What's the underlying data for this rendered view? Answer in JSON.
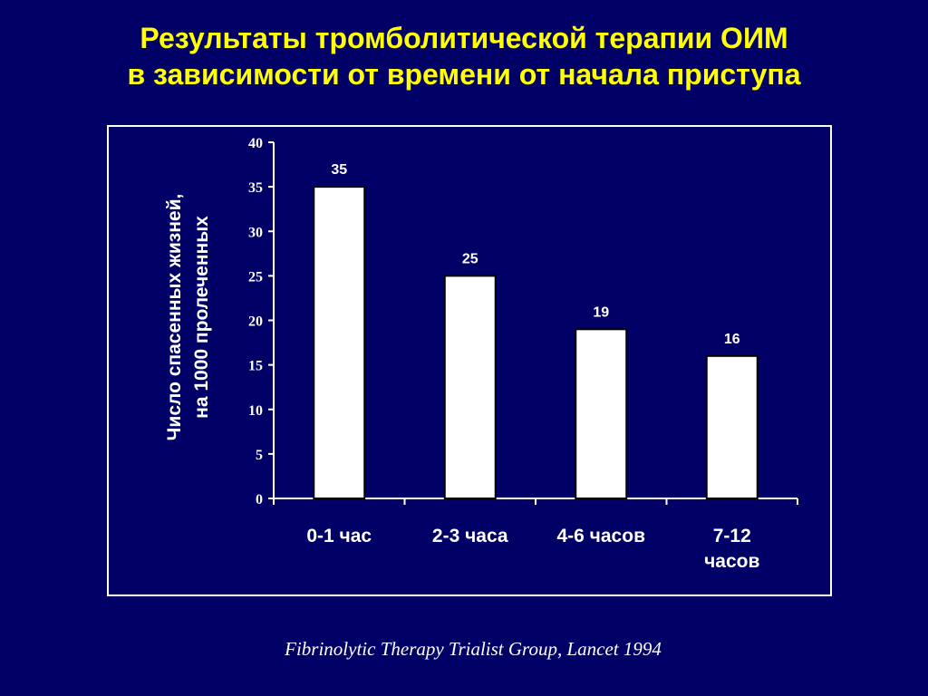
{
  "slide": {
    "title_line1": "Результаты тромболитической терапии ОИМ",
    "title_line2": "в зависимости от времени от начала приступа",
    "citation": "Fibrinolytic Therapy Trialist Group, Lancet 1994"
  },
  "colors": {
    "background": "#000066",
    "title": "#ffff00",
    "foreground": "#ffffff",
    "bar_fill": "#ffffff",
    "bar_stroke": "#000000"
  },
  "chart_data": {
    "type": "bar",
    "title": "",
    "categories": [
      "0-1 час",
      "2-3 часа",
      "4-6 часов",
      "7-12 часов"
    ],
    "category_lines": [
      [
        "0-1 час"
      ],
      [
        "2-3 часа"
      ],
      [
        "4-6 часов"
      ],
      [
        "7-12",
        "часов"
      ]
    ],
    "values": [
      35,
      25,
      19,
      16
    ],
    "data_labels": [
      "35",
      "25",
      "19",
      "16"
    ],
    "xlabel": "",
    "ylabel": "Число спасенных жизней, на 1000 пролеченных",
    "ylabel_lines": [
      "Число спасенных жизней,",
      "на 1000 пролеченных"
    ],
    "ylim": [
      0,
      40
    ],
    "ytick_step": 5,
    "grid": false,
    "legend": "none"
  }
}
